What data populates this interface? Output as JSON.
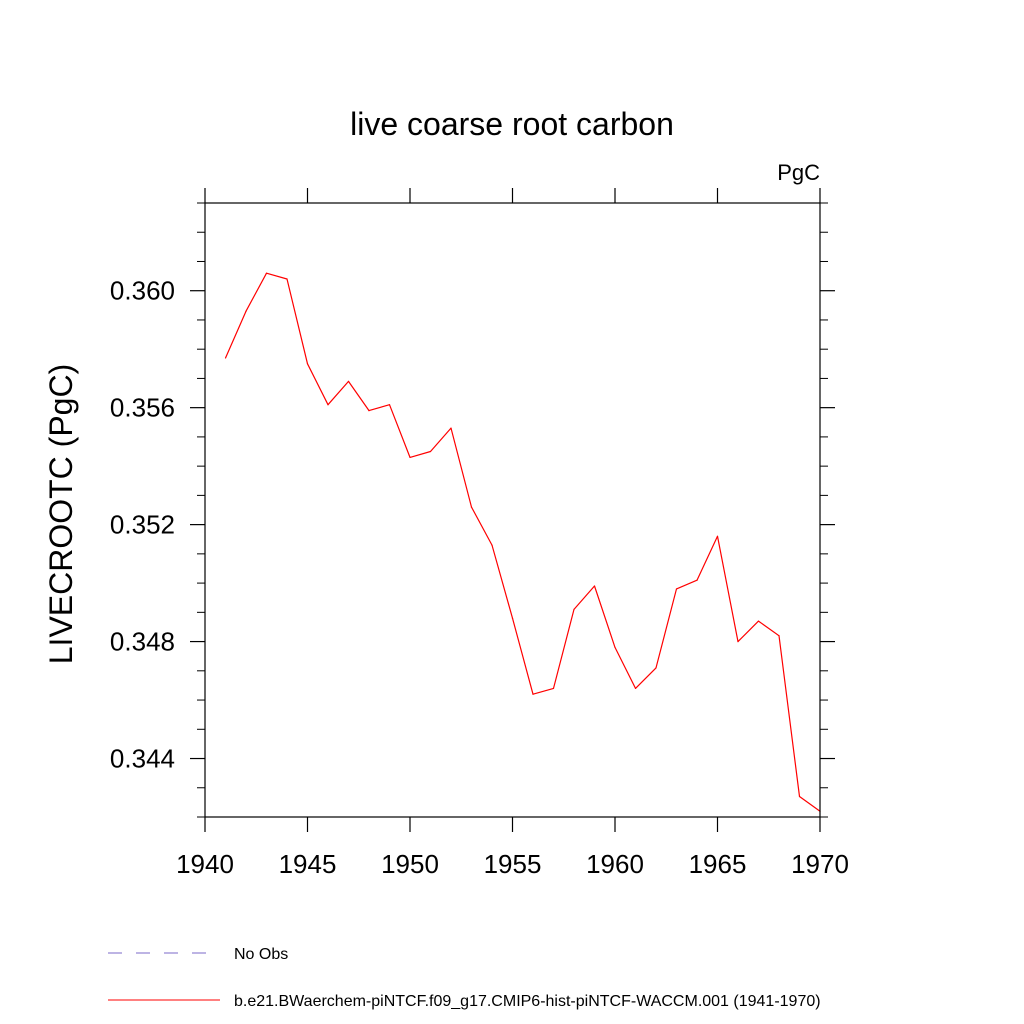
{
  "chart_data": {
    "type": "line",
    "title": "live coarse root carbon",
    "units_label": "PgC",
    "xlabel": "",
    "ylabel": "LIVECROOTC  (PgC)",
    "xlim": [
      1940,
      1970
    ],
    "ylim": [
      0.342,
      0.363
    ],
    "x_ticks": [
      1940,
      1945,
      1950,
      1955,
      1960,
      1965,
      1970
    ],
    "x_tick_labels": [
      "1940",
      "1945",
      "1950",
      "1955",
      "1960",
      "1965",
      "1970"
    ],
    "y_ticks": [
      0.344,
      0.348,
      0.352,
      0.356,
      0.36
    ],
    "y_tick_labels": [
      "0.344",
      "0.348",
      "0.352",
      "0.356",
      "0.360"
    ],
    "grid": false,
    "legend_position": "bottom",
    "colors": {
      "model": "#ff0000",
      "obs": "#7b68c8"
    },
    "series": [
      {
        "name": "b.e21.BWaerchem-piNTCF.f09_g17.CMIP6-hist-piNTCF-WACCM.001 (1941-1970)",
        "style": "solid",
        "color": "#ff0000",
        "x": [
          1941,
          1942,
          1943,
          1944,
          1945,
          1946,
          1947,
          1948,
          1949,
          1950,
          1951,
          1952,
          1953,
          1954,
          1955,
          1956,
          1957,
          1958,
          1959,
          1960,
          1961,
          1962,
          1963,
          1964,
          1965,
          1966,
          1967,
          1968,
          1969,
          1970
        ],
        "values": [
          0.3577,
          0.3593,
          0.3606,
          0.3604,
          0.3575,
          0.3561,
          0.3569,
          0.3559,
          0.3561,
          0.3543,
          0.3545,
          0.3553,
          0.3526,
          0.3513,
          0.3488,
          0.3462,
          0.3464,
          0.3491,
          0.3499,
          0.3478,
          0.3464,
          0.3471,
          0.3498,
          0.3501,
          0.3516,
          0.348,
          0.3487,
          0.3482,
          0.3427,
          0.3422
        ]
      }
    ],
    "legend": [
      {
        "label": "No Obs",
        "style": "dashed",
        "color": "#7b68c8"
      },
      {
        "label": "b.e21.BWaerchem-piNTCF.f09_g17.CMIP6-hist-piNTCF-WACCM.001 (1941-1970)",
        "style": "solid",
        "color": "#ff0000"
      }
    ]
  }
}
